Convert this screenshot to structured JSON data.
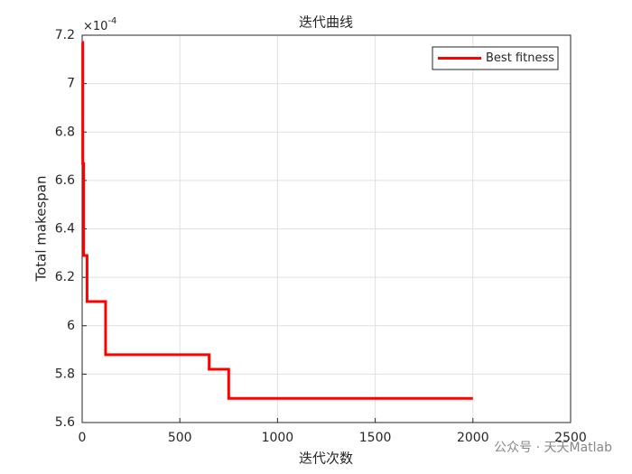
{
  "chart_data": {
    "type": "line",
    "title": "迭代曲线",
    "xlabel": "迭代次数",
    "ylabel": "Total makespan",
    "y_multiplier": {
      "base": "×10",
      "exponent": "-4"
    },
    "x": [
      0,
      3,
      3,
      8,
      8,
      25,
      25,
      120,
      120,
      650,
      650,
      750,
      750,
      2000
    ],
    "series": [
      {
        "name": "Best fitness",
        "color": "#ff0000",
        "values": [
          7.17,
          7.17,
          6.67,
          6.67,
          6.29,
          6.29,
          6.1,
          6.1,
          5.88,
          5.88,
          5.82,
          5.82,
          5.7,
          5.7
        ]
      }
    ],
    "xlim": [
      0,
      2500
    ],
    "xticks": [
      0,
      500,
      1000,
      1500,
      2000,
      2500
    ],
    "ylim": [
      5.6,
      7.2
    ],
    "yticks": [
      5.6,
      5.8,
      6,
      6.2,
      6.4,
      6.6,
      6.8,
      7,
      7.2
    ],
    "grid": true,
    "legend": "top-right",
    "watermark": "公众号 · 天天Matlab"
  }
}
